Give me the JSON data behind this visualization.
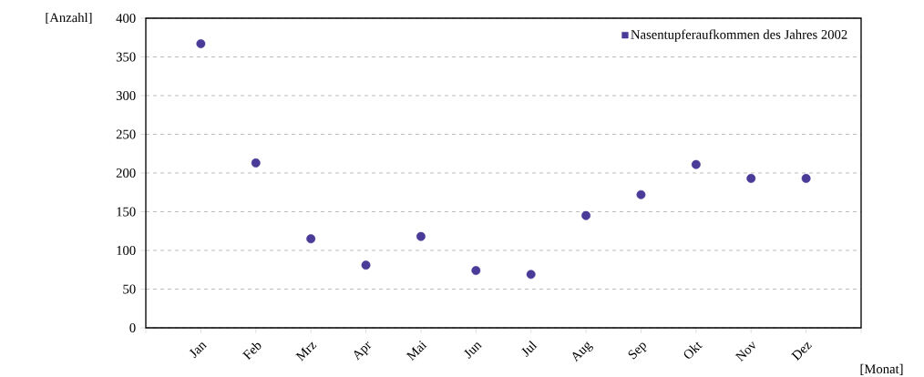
{
  "chart_data": {
    "type": "scatter",
    "xlabel": "[Monat]",
    "ylabel": "[Anzahl]",
    "categories": [
      "Jan",
      "Feb",
      "Mrz",
      "Apr",
      "Mai",
      "Jun",
      "Jul",
      "Aug",
      "Sep",
      "Okt",
      "Nov",
      "Dez"
    ],
    "series": [
      {
        "name": "Nasentupferaufkommen des Jahres 2002",
        "color": "#4b3b98",
        "values": [
          367,
          213,
          115,
          81,
          118,
          74,
          69,
          145,
          172,
          211,
          193,
          193
        ]
      }
    ],
    "ylim": [
      0,
      400
    ],
    "yticks": [
      0,
      50,
      100,
      150,
      200,
      250,
      300,
      350,
      400
    ],
    "grid": "y",
    "legend": "top right",
    "marker": "circle"
  }
}
